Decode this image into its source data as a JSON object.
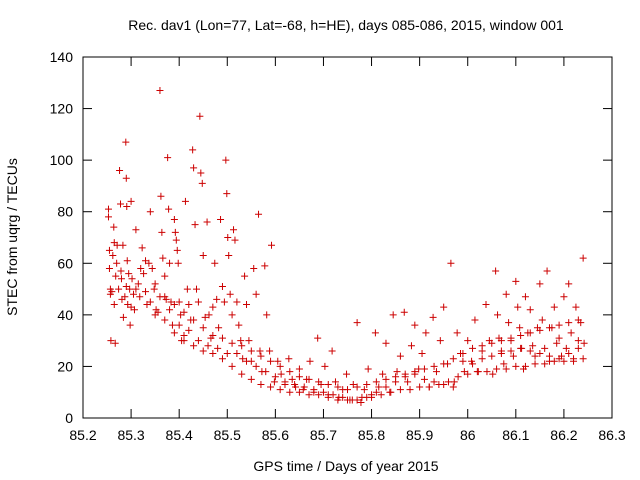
{
  "chart_data": {
    "type": "scatter",
    "title": "Rec. dav1 (Lon=77, Lat=-68, h=HE), days 085-086, 2015, window 001",
    "xlabel": "GPS time / Days of year 2015",
    "ylabel": "STEC from uqrg / TECUs",
    "xlim": [
      85.2,
      86.3
    ],
    "ylim": [
      0,
      140
    ],
    "xticks": [
      85.2,
      85.3,
      85.4,
      85.5,
      85.6,
      85.7,
      85.8,
      85.9,
      86,
      86.1,
      86.2,
      86.3
    ],
    "xtick_labels": [
      "85.2",
      "85.3",
      "85.4",
      "85.5",
      "85.6",
      "85.7",
      "85.8",
      "85.9",
      "86",
      "86.1",
      "86.2",
      "86.3"
    ],
    "yticks": [
      0,
      20,
      40,
      60,
      80,
      100,
      120,
      140
    ],
    "ytick_labels": [
      "0",
      "20",
      "40",
      "60",
      "80",
      "100",
      "120",
      "140"
    ],
    "grid": false,
    "marker": "+",
    "color": "#cc0000",
    "points": [
      [
        85.253,
        81
      ],
      [
        85.253,
        78
      ],
      [
        85.255,
        65
      ],
      [
        85.255,
        58
      ],
      [
        85.257,
        50
      ],
      [
        85.257,
        48
      ],
      [
        85.258,
        30
      ],
      [
        85.262,
        63
      ],
      [
        85.264,
        74
      ],
      [
        85.265,
        68
      ],
      [
        85.265,
        44
      ],
      [
        85.267,
        29
      ],
      [
        85.268,
        55
      ],
      [
        85.271,
        67
      ],
      [
        85.274,
        50
      ],
      [
        85.276,
        96
      ],
      [
        85.278,
        83
      ],
      [
        85.279,
        57
      ],
      [
        85.281,
        46
      ],
      [
        85.283,
        67
      ],
      [
        85.284,
        39
      ],
      [
        85.287,
        47
      ],
      [
        85.289,
        107
      ],
      [
        85.29,
        93
      ],
      [
        85.291,
        82
      ],
      [
        85.292,
        61
      ],
      [
        85.293,
        44
      ],
      [
        85.295,
        56
      ],
      [
        85.297,
        50
      ],
      [
        85.298,
        36
      ],
      [
        85.3,
        84
      ],
      [
        85.302,
        54
      ],
      [
        85.305,
        48
      ],
      [
        85.307,
        42
      ],
      [
        85.31,
        73
      ],
      [
        85.315,
        52
      ],
      [
        85.318,
        47
      ],
      [
        85.323,
        66
      ],
      [
        85.326,
        56
      ],
      [
        85.33,
        61
      ],
      [
        85.333,
        44
      ],
      [
        85.337,
        60
      ],
      [
        85.34,
        80
      ],
      [
        85.344,
        58
      ],
      [
        85.348,
        50
      ],
      [
        85.352,
        42
      ],
      [
        85.356,
        41
      ],
      [
        85.36,
        127
      ],
      [
        85.362,
        86
      ],
      [
        85.364,
        72
      ],
      [
        85.366,
        62
      ],
      [
        85.37,
        55
      ],
      [
        85.373,
        46
      ],
      [
        85.376,
        101
      ],
      [
        85.378,
        81
      ],
      [
        85.38,
        60
      ],
      [
        85.383,
        45
      ],
      [
        85.386,
        36
      ],
      [
        85.39,
        77
      ],
      [
        85.392,
        72
      ],
      [
        85.394,
        69
      ],
      [
        85.396,
        65
      ],
      [
        85.398,
        60
      ],
      [
        85.4,
        45
      ],
      [
        85.403,
        40
      ],
      [
        85.405,
        30
      ],
      [
        85.41,
        32
      ],
      [
        85.413,
        84
      ],
      [
        85.417,
        50
      ],
      [
        85.42,
        44
      ],
      [
        85.424,
        38
      ],
      [
        85.428,
        104
      ],
      [
        85.43,
        97
      ],
      [
        85.433,
        75
      ],
      [
        85.436,
        50
      ],
      [
        85.44,
        45
      ],
      [
        85.443,
        117
      ],
      [
        85.445,
        95
      ],
      [
        85.448,
        91
      ],
      [
        85.45,
        63
      ],
      [
        85.454,
        39
      ],
      [
        85.458,
        76
      ],
      [
        85.462,
        40
      ],
      [
        85.466,
        31
      ],
      [
        85.47,
        43
      ],
      [
        85.474,
        60
      ],
      [
        85.478,
        46
      ],
      [
        85.482,
        35
      ],
      [
        85.486,
        77
      ],
      [
        85.49,
        51
      ],
      [
        85.494,
        45
      ],
      [
        85.497,
        100
      ],
      [
        85.499,
        87
      ],
      [
        85.501,
        70
      ],
      [
        85.503,
        63
      ],
      [
        85.506,
        48
      ],
      [
        85.51,
        40
      ],
      [
        85.513,
        73
      ],
      [
        85.516,
        69
      ],
      [
        85.52,
        45
      ],
      [
        85.524,
        36
      ],
      [
        85.528,
        30
      ],
      [
        85.532,
        23
      ],
      [
        85.536,
        55
      ],
      [
        85.54,
        44
      ],
      [
        85.545,
        30
      ],
      [
        85.55,
        22
      ],
      [
        85.555,
        58
      ],
      [
        85.56,
        48
      ],
      [
        85.565,
        79
      ],
      [
        85.568,
        26
      ],
      [
        85.572,
        18
      ],
      [
        85.578,
        59
      ],
      [
        85.582,
        40
      ],
      [
        85.588,
        26
      ],
      [
        85.592,
        67
      ],
      [
        85.598,
        14
      ],
      [
        85.605,
        22
      ],
      [
        85.612,
        17
      ],
      [
        85.62,
        13
      ],
      [
        85.628,
        23
      ],
      [
        85.635,
        15
      ],
      [
        85.642,
        12
      ],
      [
        85.65,
        19
      ],
      [
        85.658,
        11
      ],
      [
        85.665,
        15
      ],
      [
        85.672,
        22
      ],
      [
        85.68,
        10
      ],
      [
        85.688,
        31
      ],
      [
        85.695,
        13
      ],
      [
        85.703,
        20
      ],
      [
        85.71,
        9
      ],
      [
        85.718,
        26
      ],
      [
        85.725,
        14
      ],
      [
        85.732,
        8
      ],
      [
        85.74,
        11
      ],
      [
        85.748,
        17
      ],
      [
        85.755,
        7
      ],
      [
        85.762,
        13
      ],
      [
        85.77,
        37
      ],
      [
        85.778,
        6
      ],
      [
        85.785,
        11
      ],
      [
        85.793,
        19
      ],
      [
        85.8,
        8
      ],
      [
        85.808,
        33
      ],
      [
        85.815,
        12
      ],
      [
        85.823,
        17
      ],
      [
        85.83,
        29
      ],
      [
        85.838,
        10
      ],
      [
        85.845,
        40
      ],
      [
        85.853,
        18
      ],
      [
        85.86,
        24
      ],
      [
        85.868,
        41
      ],
      [
        85.875,
        14
      ],
      [
        85.883,
        28
      ],
      [
        85.89,
        36
      ],
      [
        85.898,
        19
      ],
      [
        85.905,
        25
      ],
      [
        85.913,
        33
      ],
      [
        85.92,
        12
      ],
      [
        85.928,
        39
      ],
      [
        85.935,
        18
      ],
      [
        85.943,
        30
      ],
      [
        85.95,
        43
      ],
      [
        85.958,
        21
      ],
      [
        85.965,
        60
      ],
      [
        85.972,
        14
      ],
      [
        85.978,
        33
      ],
      [
        85.985,
        25
      ],
      [
        85.993,
        18
      ],
      [
        86.0,
        30
      ],
      [
        86.008,
        22
      ],
      [
        86.015,
        38
      ],
      [
        86.022,
        18
      ],
      [
        86.03,
        26
      ],
      [
        86.038,
        44
      ],
      [
        86.045,
        30
      ],
      [
        86.052,
        17
      ],
      [
        86.058,
        57
      ],
      [
        86.062,
        40
      ],
      [
        86.065,
        31
      ],
      [
        86.07,
        26
      ],
      [
        86.075,
        21
      ],
      [
        86.08,
        48
      ],
      [
        86.085,
        37
      ],
      [
        86.09,
        30
      ],
      [
        86.095,
        24
      ],
      [
        86.1,
        53
      ],
      [
        86.104,
        43
      ],
      [
        86.108,
        35
      ],
      [
        86.112,
        27
      ],
      [
        86.116,
        19
      ],
      [
        86.12,
        47
      ],
      [
        86.125,
        33
      ],
      [
        86.13,
        42
      ],
      [
        86.135,
        28
      ],
      [
        86.14,
        24
      ],
      [
        86.145,
        35
      ],
      [
        86.15,
        52
      ],
      [
        86.155,
        38
      ],
      [
        86.16,
        27
      ],
      [
        86.165,
        57
      ],
      [
        86.17,
        22
      ],
      [
        86.175,
        35
      ],
      [
        86.18,
        43
      ],
      [
        86.185,
        29
      ],
      [
        86.19,
        31
      ],
      [
        86.195,
        24
      ],
      [
        86.2,
        47
      ],
      [
        86.205,
        27
      ],
      [
        86.21,
        52
      ],
      [
        86.215,
        33
      ],
      [
        86.22,
        22
      ],
      [
        86.225,
        43
      ],
      [
        86.23,
        30
      ],
      [
        86.235,
        37
      ],
      [
        86.24,
        62
      ],
      [
        86.242,
        29
      ],
      [
        85.26,
        49
      ],
      [
        85.28,
        54
      ],
      [
        85.3,
        43
      ],
      [
        85.32,
        58
      ],
      [
        85.34,
        45
      ],
      [
        85.36,
        47
      ],
      [
        85.38,
        42
      ],
      [
        85.4,
        36
      ],
      [
        85.42,
        34
      ],
      [
        85.44,
        30
      ],
      [
        85.46,
        28
      ],
      [
        85.48,
        27
      ],
      [
        85.5,
        25
      ],
      [
        85.52,
        25
      ],
      [
        85.54,
        22
      ],
      [
        85.56,
        20
      ],
      [
        85.58,
        18
      ],
      [
        85.6,
        16
      ],
      [
        85.62,
        14
      ],
      [
        85.64,
        13
      ],
      [
        85.66,
        12
      ],
      [
        85.68,
        11
      ],
      [
        85.7,
        10
      ],
      [
        85.72,
        9
      ],
      [
        85.74,
        8
      ],
      [
        85.76,
        7
      ],
      [
        85.78,
        8
      ],
      [
        85.8,
        9
      ],
      [
        85.82,
        9
      ],
      [
        85.84,
        10
      ],
      [
        85.86,
        11
      ],
      [
        85.88,
        11
      ],
      [
        85.9,
        12
      ],
      [
        85.92,
        12
      ],
      [
        85.94,
        13
      ],
      [
        85.96,
        14
      ],
      [
        85.98,
        16
      ],
      [
        86.0,
        17
      ],
      [
        86.02,
        18
      ],
      [
        86.04,
        18
      ],
      [
        86.06,
        19
      ],
      [
        86.08,
        19
      ],
      [
        86.1,
        20
      ],
      [
        86.12,
        20
      ],
      [
        86.14,
        21
      ],
      [
        86.16,
        21
      ],
      [
        86.18,
        22
      ],
      [
        86.2,
        22
      ],
      [
        86.22,
        23
      ],
      [
        86.24,
        23
      ],
      [
        85.27,
        60
      ],
      [
        85.29,
        51
      ],
      [
        85.31,
        50
      ],
      [
        85.33,
        49
      ],
      [
        85.35,
        52
      ],
      [
        85.37,
        47
      ],
      [
        85.39,
        44
      ],
      [
        85.41,
        41
      ],
      [
        85.43,
        38
      ],
      [
        85.45,
        35
      ],
      [
        85.47,
        32
      ],
      [
        85.49,
        31
      ],
      [
        85.51,
        29
      ],
      [
        85.53,
        28
      ],
      [
        85.55,
        26
      ],
      [
        85.57,
        24
      ],
      [
        85.59,
        22
      ],
      [
        85.61,
        20
      ],
      [
        85.63,
        18
      ],
      [
        85.65,
        16
      ],
      [
        85.67,
        15
      ],
      [
        85.69,
        14
      ],
      [
        85.71,
        13
      ],
      [
        85.73,
        12
      ],
      [
        85.75,
        11
      ],
      [
        85.77,
        12
      ],
      [
        85.79,
        13
      ],
      [
        85.81,
        14
      ],
      [
        85.83,
        15
      ],
      [
        85.85,
        16
      ],
      [
        85.87,
        17
      ],
      [
        85.89,
        18
      ],
      [
        85.91,
        19
      ],
      [
        85.93,
        20
      ],
      [
        85.95,
        21
      ],
      [
        85.97,
        23
      ],
      [
        85.99,
        25
      ],
      [
        86.01,
        27
      ],
      [
        86.03,
        28
      ],
      [
        86.05,
        29
      ],
      [
        86.07,
        30
      ],
      [
        86.09,
        31
      ],
      [
        86.11,
        32
      ],
      [
        86.13,
        33
      ],
      [
        86.15,
        34
      ],
      [
        86.17,
        35
      ],
      [
        86.19,
        36
      ],
      [
        86.21,
        37
      ],
      [
        86.23,
        38
      ],
      [
        85.35,
        40
      ],
      [
        85.37,
        38
      ],
      [
        85.39,
        33
      ],
      [
        85.41,
        30
      ],
      [
        85.43,
        28
      ],
      [
        85.45,
        26
      ],
      [
        85.47,
        25
      ],
      [
        85.49,
        23
      ],
      [
        85.51,
        20
      ],
      [
        85.53,
        17
      ],
      [
        85.55,
        15
      ],
      [
        85.57,
        13
      ],
      [
        85.59,
        12
      ],
      [
        85.61,
        11
      ],
      [
        85.63,
        10
      ],
      [
        85.65,
        10
      ],
      [
        85.67,
        9
      ],
      [
        85.69,
        9
      ],
      [
        85.71,
        8
      ],
      [
        85.73,
        7
      ],
      [
        85.75,
        7
      ],
      [
        85.77,
        7
      ],
      [
        85.79,
        8
      ],
      [
        85.81,
        10
      ],
      [
        85.83,
        12
      ],
      [
        85.85,
        14
      ],
      [
        85.87,
        16
      ],
      [
        85.89,
        17
      ],
      [
        85.91,
        15
      ],
      [
        85.93,
        14
      ],
      [
        85.95,
        13
      ],
      [
        85.97,
        12
      ],
      [
        85.99,
        22
      ],
      [
        86.01,
        21
      ],
      [
        86.03,
        23
      ],
      [
        86.05,
        24
      ],
      [
        86.07,
        25
      ],
      [
        86.09,
        26
      ],
      [
        86.11,
        27
      ],
      [
        86.13,
        26
      ],
      [
        86.15,
        25
      ],
      [
        86.17,
        24
      ],
      [
        86.19,
        23
      ],
      [
        86.21,
        25
      ],
      [
        86.23,
        27
      ]
    ]
  }
}
